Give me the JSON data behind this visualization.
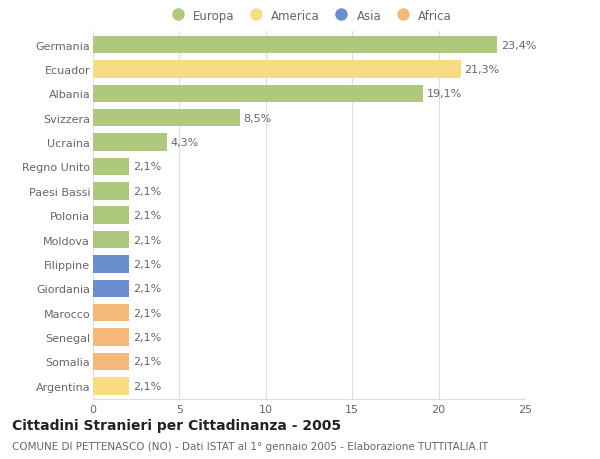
{
  "categories": [
    "Germania",
    "Ecuador",
    "Albania",
    "Svizzera",
    "Ucraina",
    "Regno Unito",
    "Paesi Bassi",
    "Polonia",
    "Moldova",
    "Filippine",
    "Giordania",
    "Marocco",
    "Senegal",
    "Somalia",
    "Argentina"
  ],
  "values": [
    23.4,
    21.3,
    19.1,
    8.5,
    4.3,
    2.1,
    2.1,
    2.1,
    2.1,
    2.1,
    2.1,
    2.1,
    2.1,
    2.1,
    2.1
  ],
  "labels": [
    "23,4%",
    "21,3%",
    "19,1%",
    "8,5%",
    "4,3%",
    "2,1%",
    "2,1%",
    "2,1%",
    "2,1%",
    "2,1%",
    "2,1%",
    "2,1%",
    "2,1%",
    "2,1%",
    "2,1%"
  ],
  "colors": [
    "#aec87e",
    "#f7dc82",
    "#aec87e",
    "#aec87e",
    "#aec87e",
    "#aec87e",
    "#aec87e",
    "#aec87e",
    "#aec87e",
    "#6b8fcc",
    "#6b8fcc",
    "#f4b87a",
    "#f4b87a",
    "#f4b87a",
    "#f7dc82"
  ],
  "legend_labels": [
    "Europa",
    "America",
    "Asia",
    "Africa"
  ],
  "legend_colors": [
    "#aec87e",
    "#f7dc82",
    "#6b8fcc",
    "#f4b87a"
  ],
  "title": "Cittadini Stranieri per Cittadinanza - 2005",
  "subtitle": "COMUNE DI PETTENASCO (NO) - Dati ISTAT al 1° gennaio 2005 - Elaborazione TUTTITALIA.IT",
  "xlim": [
    0,
    25
  ],
  "xticks": [
    0,
    5,
    10,
    15,
    20,
    25
  ],
  "background_color": "#ffffff",
  "grid_color": "#dddddd",
  "bar_height": 0.72,
  "label_fontsize": 8.0,
  "tick_fontsize": 8.0,
  "title_fontsize": 10,
  "subtitle_fontsize": 7.5
}
